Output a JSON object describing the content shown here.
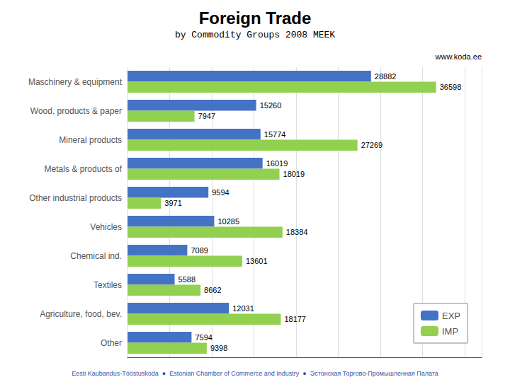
{
  "chart_data": {
    "type": "bar",
    "orientation": "horizontal",
    "title": "Foreign Trade",
    "subtitle": "by Commodity Groups 2008 MEEK",
    "annotations": [
      "www.koda.ee",
      "Eesti Kaubandus-Tööstuskoda  ●  Estonian Chamber of Commerce and Industry  ●  Эстонская Торгово-Промышленная Палата"
    ],
    "categories": [
      "Maschinery & equipment",
      "Wood, products & paper",
      "Mineral products",
      "Metals & products of",
      "Other industrial products",
      "Vehicles",
      "Chemical ind.",
      "Textiles",
      "Agriculture, food, bev.",
      "Other"
    ],
    "series": [
      {
        "name": "EXP",
        "color": "#4472C4",
        "values": [
          28882,
          15260,
          15774,
          16019,
          9594,
          10285,
          7089,
          5588,
          12031,
          7594
        ]
      },
      {
        "name": "IMP",
        "color": "#92D050",
        "values": [
          36598,
          7947,
          27269,
          18019,
          3971,
          18384,
          13601,
          8662,
          18177,
          9398
        ]
      }
    ],
    "xlim": [
      0,
      42000
    ],
    "xticks": [
      0,
      5000,
      10000,
      15000,
      20000,
      25000,
      30000,
      35000,
      40000
    ],
    "grid": true,
    "legend": "lower right",
    "data_labels": true,
    "tick_labels": "y"
  }
}
